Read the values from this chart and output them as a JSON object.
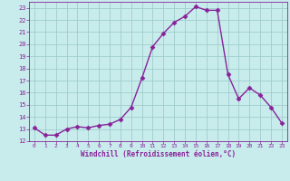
{
  "x": [
    0,
    1,
    2,
    3,
    4,
    5,
    6,
    7,
    8,
    9,
    10,
    11,
    12,
    13,
    14,
    15,
    16,
    17,
    18,
    19,
    20,
    21,
    22,
    23
  ],
  "y": [
    13.1,
    12.5,
    12.5,
    13.0,
    13.2,
    13.1,
    13.3,
    13.4,
    13.8,
    14.8,
    17.2,
    19.8,
    20.9,
    21.8,
    22.3,
    23.1,
    22.8,
    22.8,
    17.5,
    15.5,
    16.4,
    15.8,
    14.8,
    13.5
  ],
  "line_color": "#882299",
  "marker": "D",
  "markersize": 2.5,
  "linewidth": 1.0,
  "bg_color": "#c8ecec",
  "grid_color": "#a0cccc",
  "xlabel": "Windchill (Refroidissement éolien,°C)",
  "xlabel_color": "#882299",
  "tick_color": "#882299",
  "xlim": [
    -0.5,
    23.5
  ],
  "ylim": [
    12,
    23.5
  ],
  "yticks": [
    12,
    13,
    14,
    15,
    16,
    17,
    18,
    19,
    20,
    21,
    22,
    23
  ],
  "xticks": [
    0,
    1,
    2,
    3,
    4,
    5,
    6,
    7,
    8,
    9,
    10,
    11,
    12,
    13,
    14,
    15,
    16,
    17,
    18,
    19,
    20,
    21,
    22,
    23
  ],
  "figsize": [
    3.2,
    2.0
  ],
  "dpi": 100
}
